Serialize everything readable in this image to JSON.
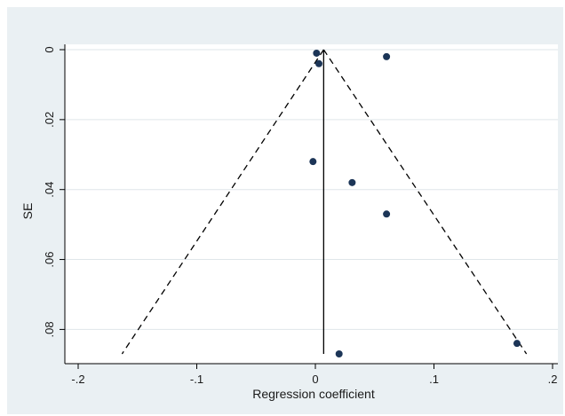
{
  "chart_data": {
    "type": "scatter",
    "title": "",
    "xlabel": "Regression coefficient",
    "ylabel": "SE",
    "xlim": [
      -0.2,
      0.2
    ],
    "ylim": [
      0,
      0.088
    ],
    "y_axis_inverted": true,
    "x_ticks": [
      -0.2,
      -0.1,
      0,
      0.1,
      0.2
    ],
    "x_tick_labels": [
      "-.2",
      "-.1",
      "0",
      ".1",
      ".2"
    ],
    "y_ticks": [
      0,
      0.02,
      0.04,
      0.06,
      0.08
    ],
    "y_tick_labels": [
      "0",
      ".02",
      ".04",
      ".06",
      ".08"
    ],
    "grid": true,
    "legend": "none",
    "points": [
      {
        "x": 0.001,
        "y": 0.001
      },
      {
        "x": 0.003,
        "y": 0.004
      },
      {
        "x": 0.06,
        "y": 0.002
      },
      {
        "x": -0.002,
        "y": 0.032
      },
      {
        "x": 0.031,
        "y": 0.038
      },
      {
        "x": 0.06,
        "y": 0.047
      },
      {
        "x": 0.17,
        "y": 0.084
      },
      {
        "x": 0.02,
        "y": 0.087
      }
    ],
    "pooled_estimate": 0.007,
    "funnel_limits": {
      "apex": {
        "x": 0.007,
        "y": 0
      },
      "left_end": {
        "x": -0.163,
        "y": 0.087
      },
      "right_end": {
        "x": 0.178,
        "y": 0.087
      }
    },
    "colors": {
      "background": "#eaf0f3",
      "plot_area": "#ffffff",
      "grid": "#dfe6ea",
      "points": "#1c3557",
      "lines": "#000000"
    }
  }
}
